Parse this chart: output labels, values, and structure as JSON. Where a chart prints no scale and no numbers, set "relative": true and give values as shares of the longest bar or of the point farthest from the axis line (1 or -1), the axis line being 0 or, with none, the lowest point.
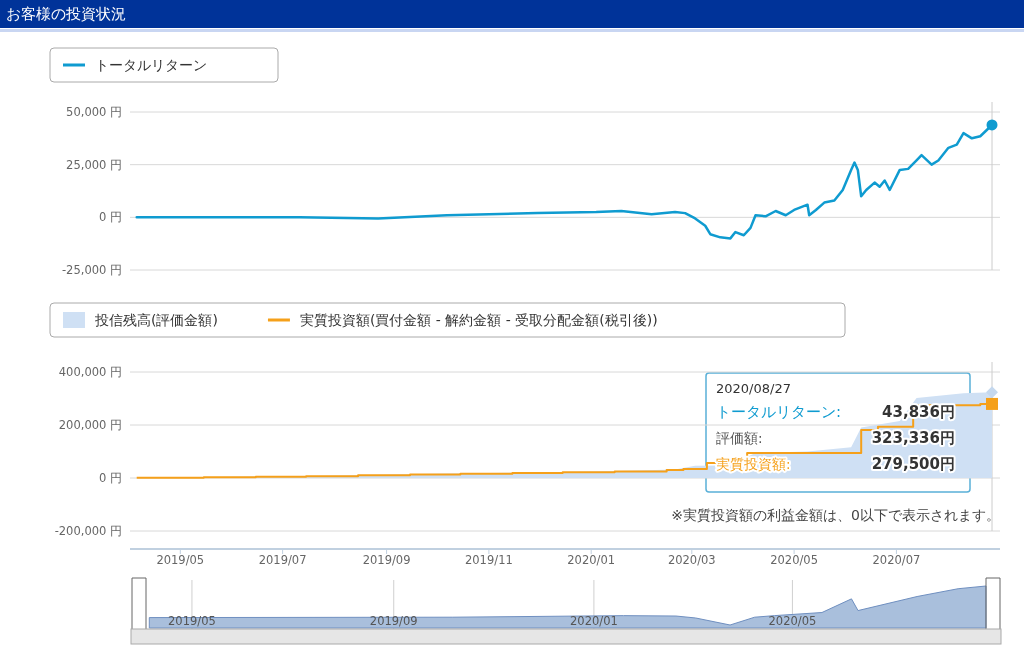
{
  "chart_data": [
    {
      "type": "line",
      "title": "お客様の投資状況",
      "xlim": [
        "2019-04-01",
        "2020-08-27"
      ],
      "ylim": [
        -25000,
        50000
      ],
      "yticks": [
        {
          "value": -25000,
          "label": "-25,000 円"
        },
        {
          "value": 0,
          "label": "0 円"
        },
        {
          "value": 25000,
          "label": "25,000 円"
        },
        {
          "value": 50000,
          "label": "50,000 円"
        }
      ],
      "grid": "y",
      "legend": "top left",
      "tick_labels": "y",
      "ref_lines": [
        {
          "axis": "x",
          "value": "2020-08-27",
          "color": "#cccccc"
        }
      ],
      "series": [
        {
          "name": "トータルリターン",
          "color": "#0f9bd0",
          "x": [
            "2019-04-05",
            "2019-05-12",
            "2019-07-11",
            "2019-08-27",
            "2019-10-07",
            "2019-11-30",
            "2020-01-04",
            "2020-01-19",
            "2020-02-06",
            "2020-02-20",
            "2020-02-26",
            "2020-03-03",
            "2020-03-09",
            "2020-03-12",
            "2020-03-18",
            "2020-03-24",
            "2020-03-27",
            "2020-04-01",
            "2020-04-05",
            "2020-04-08",
            "2020-04-14",
            "2020-04-20",
            "2020-04-26",
            "2020-05-01",
            "2020-05-09",
            "2020-05-10",
            "2020-05-14",
            "2020-05-19",
            "2020-05-25",
            "2020-05-30",
            "2020-06-04",
            "2020-06-06",
            "2020-06-08",
            "2020-06-10",
            "2020-06-13",
            "2020-06-18",
            "2020-06-21",
            "2020-06-24",
            "2020-06-27",
            "2020-07-03",
            "2020-07-08",
            "2020-07-13",
            "2020-07-16",
            "2020-07-22",
            "2020-07-26",
            "2020-08-01",
            "2020-08-06",
            "2020-08-10",
            "2020-08-15",
            "2020-08-20",
            "2020-08-27"
          ],
          "values": [
            0,
            0,
            0,
            -500,
            1000,
            2000,
            2500,
            3000,
            1500,
            2500,
            2000,
            -500,
            -4000,
            -8000,
            -9500,
            -10000,
            -7000,
            -8500,
            -5000,
            1000,
            500,
            3000,
            1000,
            3500,
            6000,
            1000,
            3500,
            7000,
            8000,
            13000,
            22500,
            26000,
            22500,
            10000,
            13000,
            16500,
            14500,
            17500,
            13000,
            22500,
            23000,
            27000,
            29500,
            25000,
            27000,
            33000,
            34500,
            40000,
            37500,
            38500,
            43836
          ]
        },
        {
          "type": "scatter",
          "marker": "circle",
          "color": "#0f9bd0",
          "x": [
            "2020-08-27"
          ],
          "values": [
            43836
          ]
        }
      ]
    },
    {
      "type": "area",
      "xlim": [
        "2019-04-01",
        "2020-08-27"
      ],
      "ylim": [
        -200000,
        400000
      ],
      "yticks": [
        {
          "value": -200000,
          "label": "-200,000 円"
        },
        {
          "value": 0,
          "label": "0 円"
        },
        {
          "value": 200000,
          "label": "200,000 円"
        },
        {
          "value": 400000,
          "label": "400,000 円"
        }
      ],
      "xticks": [
        {
          "value": "2019-05-01",
          "label": "2019/05"
        },
        {
          "value": "2019-07-01",
          "label": "2019/07"
        },
        {
          "value": "2019-09-01",
          "label": "2019/09"
        },
        {
          "value": "2019-11-01",
          "label": "2019/11"
        },
        {
          "value": "2020-01-01",
          "label": "2020/01"
        },
        {
          "value": "2020-03-01",
          "label": "2020/03"
        },
        {
          "value": "2020-05-01",
          "label": "2020/05"
        },
        {
          "value": "2020-07-01",
          "label": "2020/07"
        }
      ],
      "grid": "y",
      "legend": "top left",
      "ref_lines": [
        {
          "axis": "x",
          "value": "2020-08-27",
          "color": "#cccccc"
        }
      ],
      "annotations": [
        "2020/08/27",
        "トータルリターン:",
        "43,836円",
        "評価額:",
        "323,336円",
        "実質投資額:",
        "279,500円",
        "※実質投資額の利益金額は、0以下で表示されます。"
      ],
      "series": [
        {
          "name": "投信残高(評価金額)",
          "type": "area",
          "color": "#cfe0f4",
          "x": [
            "2019-04-05",
            "2019-07-11",
            "2019-10-07",
            "2020-01-04",
            "2020-02-20",
            "2020-03-03",
            "2020-03-24",
            "2020-04-08",
            "2020-05-09",
            "2020-06-04",
            "2020-06-10",
            "2020-07-03",
            "2020-07-13",
            "2020-08-10",
            "2020-08-27"
          ],
          "values": [
            1000,
            7000,
            17000,
            24500,
            32500,
            46500,
            47000,
            95000,
            100000,
            116500,
            191000,
            215500,
            302000,
            319500,
            323336
          ]
        },
        {
          "name": "実質投資額(買付金額 - 解約金額 - 受取分配金額(税引後))",
          "type": "step",
          "color": "#f5a01a",
          "x": [
            "2019-04-05",
            "2019-05-15",
            "2019-06-15",
            "2019-07-15",
            "2019-08-15",
            "2019-09-15",
            "2019-10-15",
            "2019-11-15",
            "2019-12-15",
            "2020-01-15",
            "2020-02-15",
            "2020-02-25",
            "2020-03-10",
            "2020-04-03",
            "2020-06-10",
            "2020-06-20",
            "2020-07-11",
            "2020-08-20",
            "2020-08-27"
          ],
          "values": [
            1000,
            3000,
            5000,
            7000,
            10000,
            13000,
            16000,
            19000,
            22000,
            25000,
            30000,
            34000,
            57000,
            94000,
            181000,
            193000,
            275000,
            279500,
            279500
          ]
        },
        {
          "type": "scatter",
          "marker": "diamond",
          "color": "#c5d8ee",
          "x": [
            "2020-08-27"
          ],
          "values": [
            323336
          ]
        },
        {
          "type": "scatter",
          "marker": "square",
          "color": "#f5a01a",
          "x": [
            "2020-08-27"
          ],
          "values": [
            279500
          ]
        }
      ]
    },
    {
      "type": "area",
      "relative": true,
      "xlim": [
        "2019-04-03",
        "2020-08-27"
      ],
      "tick_labels": "x",
      "grid": "x",
      "xticks": [
        {
          "value": "2019-05-01",
          "label": "2019/05"
        },
        {
          "value": "2019-09-01",
          "label": "2019/09"
        },
        {
          "value": "2020-01-01",
          "label": "2020/01"
        },
        {
          "value": "2020-05-01",
          "label": "2020/05"
        }
      ],
      "series": [
        {
          "color": "#a9bfdc",
          "x": [
            "2019-04-05",
            "2019-10-07",
            "2020-01-19",
            "2020-02-20",
            "2020-03-03",
            "2020-03-24",
            "2020-04-08",
            "2020-04-20",
            "2020-05-19",
            "2020-06-06",
            "2020-06-10",
            "2020-07-16",
            "2020-08-10",
            "2020-08-27"
          ],
          "values": [
            0.19,
            0.2,
            0.24,
            0.23,
            0.18,
            0,
            0.2,
            0.24,
            0.32,
            0.67,
            0.37,
            0.73,
            0.93,
            1
          ]
        }
      ]
    }
  ]
}
